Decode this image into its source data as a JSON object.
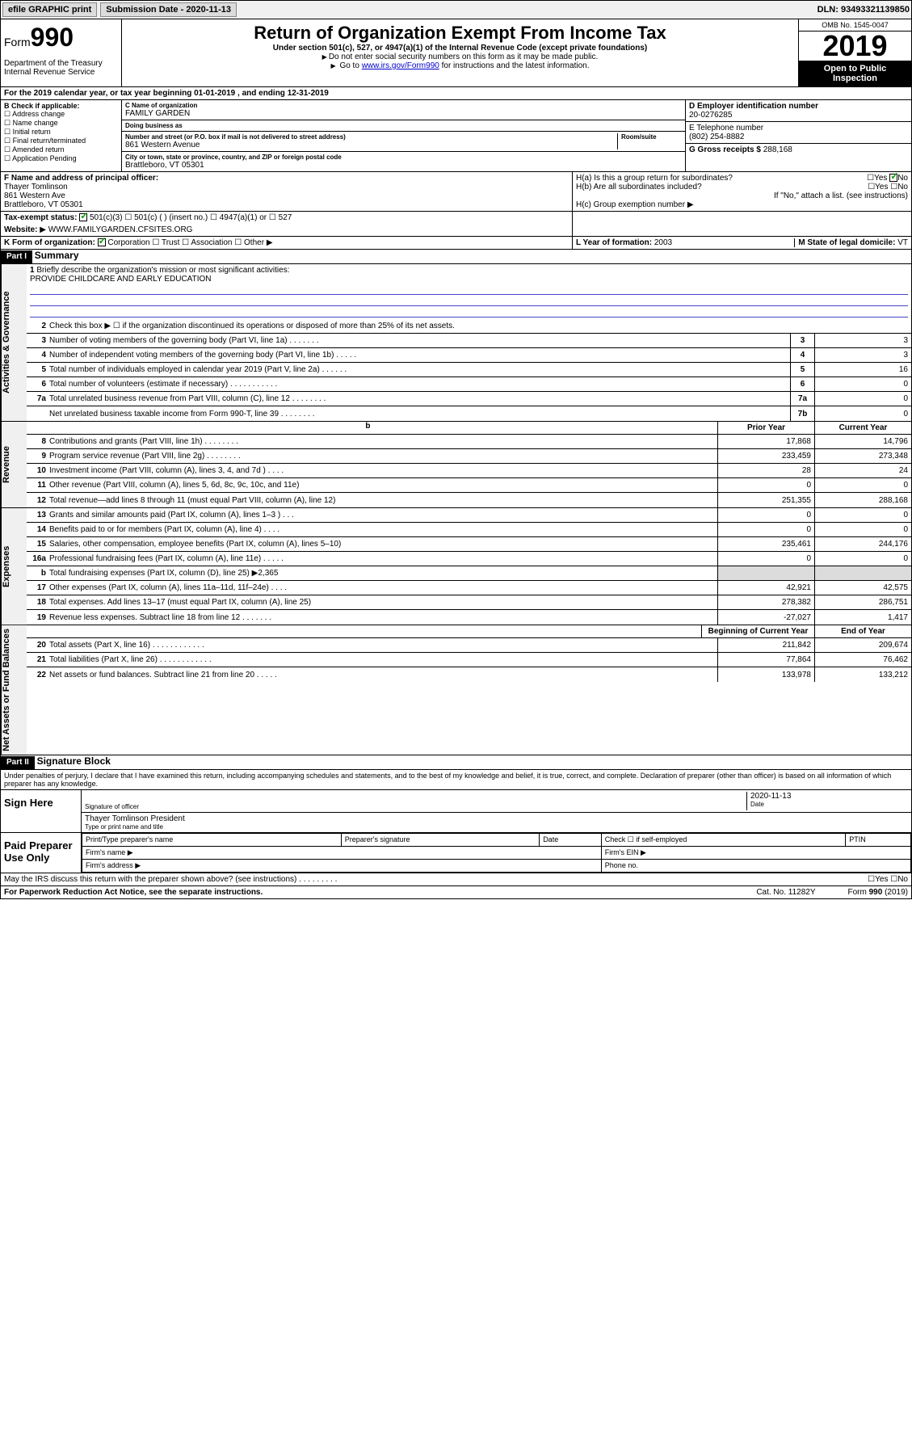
{
  "top": {
    "efile": "efile GRAPHIC print",
    "submission": "Submission Date - 2020-11-13",
    "dln": "DLN: 93493321139850"
  },
  "header": {
    "form_label": "Form",
    "form_num": "990",
    "dept": "Department of the Treasury\nInternal Revenue Service",
    "title": "Return of Organization Exempt From Income Tax",
    "sub": "Under section 501(c), 527, or 4947(a)(1) of the Internal Revenue Code (except private foundations)",
    "note1": "Do not enter social security numbers on this form as it may be made public.",
    "note2_pre": "Go to ",
    "note2_link": "www.irs.gov/Form990",
    "note2_post": " for instructions and the latest information.",
    "omb": "OMB No. 1545-0047",
    "year": "2019",
    "open": "Open to Public Inspection"
  },
  "a": "For the 2019 calendar year, or tax year beginning 01-01-2019    , and ending 12-31-2019",
  "b": {
    "title": "B Check if applicable:",
    "opts": [
      "Address change",
      "Name change",
      "Initial return",
      "Final return/terminated",
      "Amended return",
      "Application Pending"
    ]
  },
  "c": {
    "name_label": "C Name of organization",
    "name": "FAMILY GARDEN",
    "dba_label": "Doing business as",
    "dba": "",
    "addr_label": "Number and street (or P.O. box if mail is not delivered to street address)",
    "addr": "861 Western Avenue",
    "room_label": "Room/suite",
    "city_label": "City or town, state or province, country, and ZIP or foreign postal code",
    "city": "Brattleboro, VT  05301"
  },
  "d": {
    "label": "D Employer identification number",
    "val": "20-0276285"
  },
  "e": {
    "label": "E Telephone number",
    "val": "(802) 254-8882"
  },
  "g": {
    "label": "G Gross receipts $",
    "val": "288,168"
  },
  "f": {
    "label": "F  Name and address of principal officer:",
    "name": "Thayer Tomlinson",
    "addr1": "861 Western Ave",
    "addr2": "Brattleboro, VT  05301"
  },
  "h": {
    "a_label": "H(a)  Is this a group return for subordinates?",
    "b_label": "H(b)  Are all subordinates included?",
    "b_note": "If \"No,\" attach a list. (see instructions)",
    "c_label": "H(c)  Group exemption number"
  },
  "i": {
    "label": "Tax-exempt status:",
    "opts": [
      "501(c)(3)",
      "501(c) (  )  (insert no.)",
      "4947(a)(1) or",
      "527"
    ]
  },
  "j": {
    "label": "Website:",
    "val": "WWW.FAMILYGARDEN.CFSITES.ORG"
  },
  "k": {
    "label": "K Form of organization:",
    "opts": [
      "Corporation",
      "Trust",
      "Association",
      "Other"
    ]
  },
  "l": {
    "label": "L Year of formation:",
    "val": "2003"
  },
  "m": {
    "label": "M State of legal domicile:",
    "val": "VT"
  },
  "part1": {
    "header": "Part I",
    "title": "Summary",
    "sections": {
      "gov": "Activities & Governance",
      "rev": "Revenue",
      "exp": "Expenses",
      "net": "Net Assets or Fund Balances"
    },
    "line1": "Briefly describe the organization's mission or most significant activities:",
    "mission": "PROVIDE CHILDCARE AND EARLY EDUCATION",
    "line2": "Check this box ▶ ☐  if the organization discontinued its operations or disposed of more than 25% of its net assets.",
    "lines": [
      {
        "n": "3",
        "t": "Number of voting members of the governing body (Part VI, line 1a)  .    .    .    .    .    .    .",
        "b": "3",
        "v": "3"
      },
      {
        "n": "4",
        "t": "Number of independent voting members of the governing body (Part VI, line 1b)  .    .    .    .    .",
        "b": "4",
        "v": "3"
      },
      {
        "n": "5",
        "t": "Total number of individuals employed in calendar year 2019 (Part V, line 2a)  .    .    .    .    .    .",
        "b": "5",
        "v": "16"
      },
      {
        "n": "6",
        "t": "Total number of volunteers (estimate if necessary)  .    .    .    .    .    .    .    .    .    .    .",
        "b": "6",
        "v": "0"
      },
      {
        "n": "7a",
        "t": "Total unrelated business revenue from Part VIII, column (C), line 12  .    .    .    .    .    .    .    .",
        "b": "7a",
        "v": "0"
      },
      {
        "n": "",
        "t": "Net unrelated business taxable income from Form 990-T, line 39  .    .    .    .    .    .    .    .",
        "b": "7b",
        "v": "0"
      }
    ],
    "col_heads": {
      "prior": "Prior Year",
      "current": "Current Year",
      "bcy": "Beginning of Current Year",
      "eoy": "End of Year"
    },
    "revenue": [
      {
        "n": "8",
        "t": "Contributions and grants (Part VIII, line 1h)  .    .    .    .    .    .    .    .",
        "p": "17,868",
        "c": "14,796"
      },
      {
        "n": "9",
        "t": "Program service revenue (Part VIII, line 2g)  .    .    .    .    .    .    .    .",
        "p": "233,459",
        "c": "273,348"
      },
      {
        "n": "10",
        "t": "Investment income (Part VIII, column (A), lines 3, 4, and 7d )  .    .    .    .",
        "p": "28",
        "c": "24"
      },
      {
        "n": "11",
        "t": "Other revenue (Part VIII, column (A), lines 5, 6d, 8c, 9c, 10c, and 11e)",
        "p": "0",
        "c": "0"
      },
      {
        "n": "12",
        "t": "Total revenue—add lines 8 through 11 (must equal Part VIII, column (A), line 12)",
        "p": "251,355",
        "c": "288,168"
      }
    ],
    "expenses": [
      {
        "n": "13",
        "t": "Grants and similar amounts paid (Part IX, column (A), lines 1–3 )  .    .    .",
        "p": "0",
        "c": "0"
      },
      {
        "n": "14",
        "t": "Benefits paid to or for members (Part IX, column (A), line 4)  .    .    .    .",
        "p": "0",
        "c": "0"
      },
      {
        "n": "15",
        "t": "Salaries, other compensation, employee benefits (Part IX, column (A), lines 5–10)",
        "p": "235,461",
        "c": "244,176"
      },
      {
        "n": "16a",
        "t": "Professional fundraising fees (Part IX, column (A), line 11e)  .    .    .    .    .",
        "p": "0",
        "c": "0"
      },
      {
        "n": "b",
        "t": "Total fundraising expenses (Part IX, column (D), line 25) ▶2,365",
        "gray": true
      },
      {
        "n": "17",
        "t": "Other expenses (Part IX, column (A), lines 11a–11d, 11f–24e)  .    .    .    .",
        "p": "42,921",
        "c": "42,575"
      },
      {
        "n": "18",
        "t": "Total expenses. Add lines 13–17 (must equal Part IX, column (A), line 25)",
        "p": "278,382",
        "c": "286,751"
      },
      {
        "n": "19",
        "t": "Revenue less expenses. Subtract line 18 from line 12  .    .    .    .    .    .    .",
        "p": "-27,027",
        "c": "1,417"
      }
    ],
    "netassets": [
      {
        "n": "20",
        "t": "Total assets (Part X, line 16)  .    .    .    .    .    .    .    .    .    .    .    .",
        "p": "211,842",
        "c": "209,674"
      },
      {
        "n": "21",
        "t": "Total liabilities (Part X, line 26)  .    .    .    .    .    .    .    .    .    .    .    .",
        "p": "77,864",
        "c": "76,462"
      },
      {
        "n": "22",
        "t": "Net assets or fund balances. Subtract line 21 from line 20  .    .    .    .    .",
        "p": "133,978",
        "c": "133,212"
      }
    ]
  },
  "part2": {
    "header": "Part II",
    "title": "Signature Block",
    "penalties": "Under penalties of perjury, I declare that I have examined this return, including accompanying schedules and statements, and to the best of my knowledge and belief, it is true, correct, and complete. Declaration of preparer (other than officer) is based on all information of which preparer has any knowledge.",
    "sign_here": "Sign Here",
    "sig_officer": "Signature of officer",
    "date": "2020-11-13",
    "date_label": "Date",
    "officer_name": "Thayer Tomlinson  President",
    "type_name": "Type or print name and title",
    "paid": "Paid Preparer Use Only",
    "prep": {
      "print_name": "Print/Type preparer's name",
      "sig": "Preparer's signature",
      "date": "Date",
      "check": "Check ☐ if self-employed",
      "ptin": "PTIN",
      "firm_name": "Firm's name  ▶",
      "firm_ein": "Firm's EIN ▶",
      "firm_addr": "Firm's address ▶",
      "phone": "Phone no."
    },
    "discuss": "May the IRS discuss this return with the preparer shown above? (see instructions)  .    .    .    .    .    .    .    .    .",
    "yes": "Yes",
    "no": "No"
  },
  "footer": {
    "paperwork": "For Paperwork Reduction Act Notice, see the separate instructions.",
    "cat": "Cat. No. 11282Y",
    "form": "Form 990 (2019)"
  }
}
